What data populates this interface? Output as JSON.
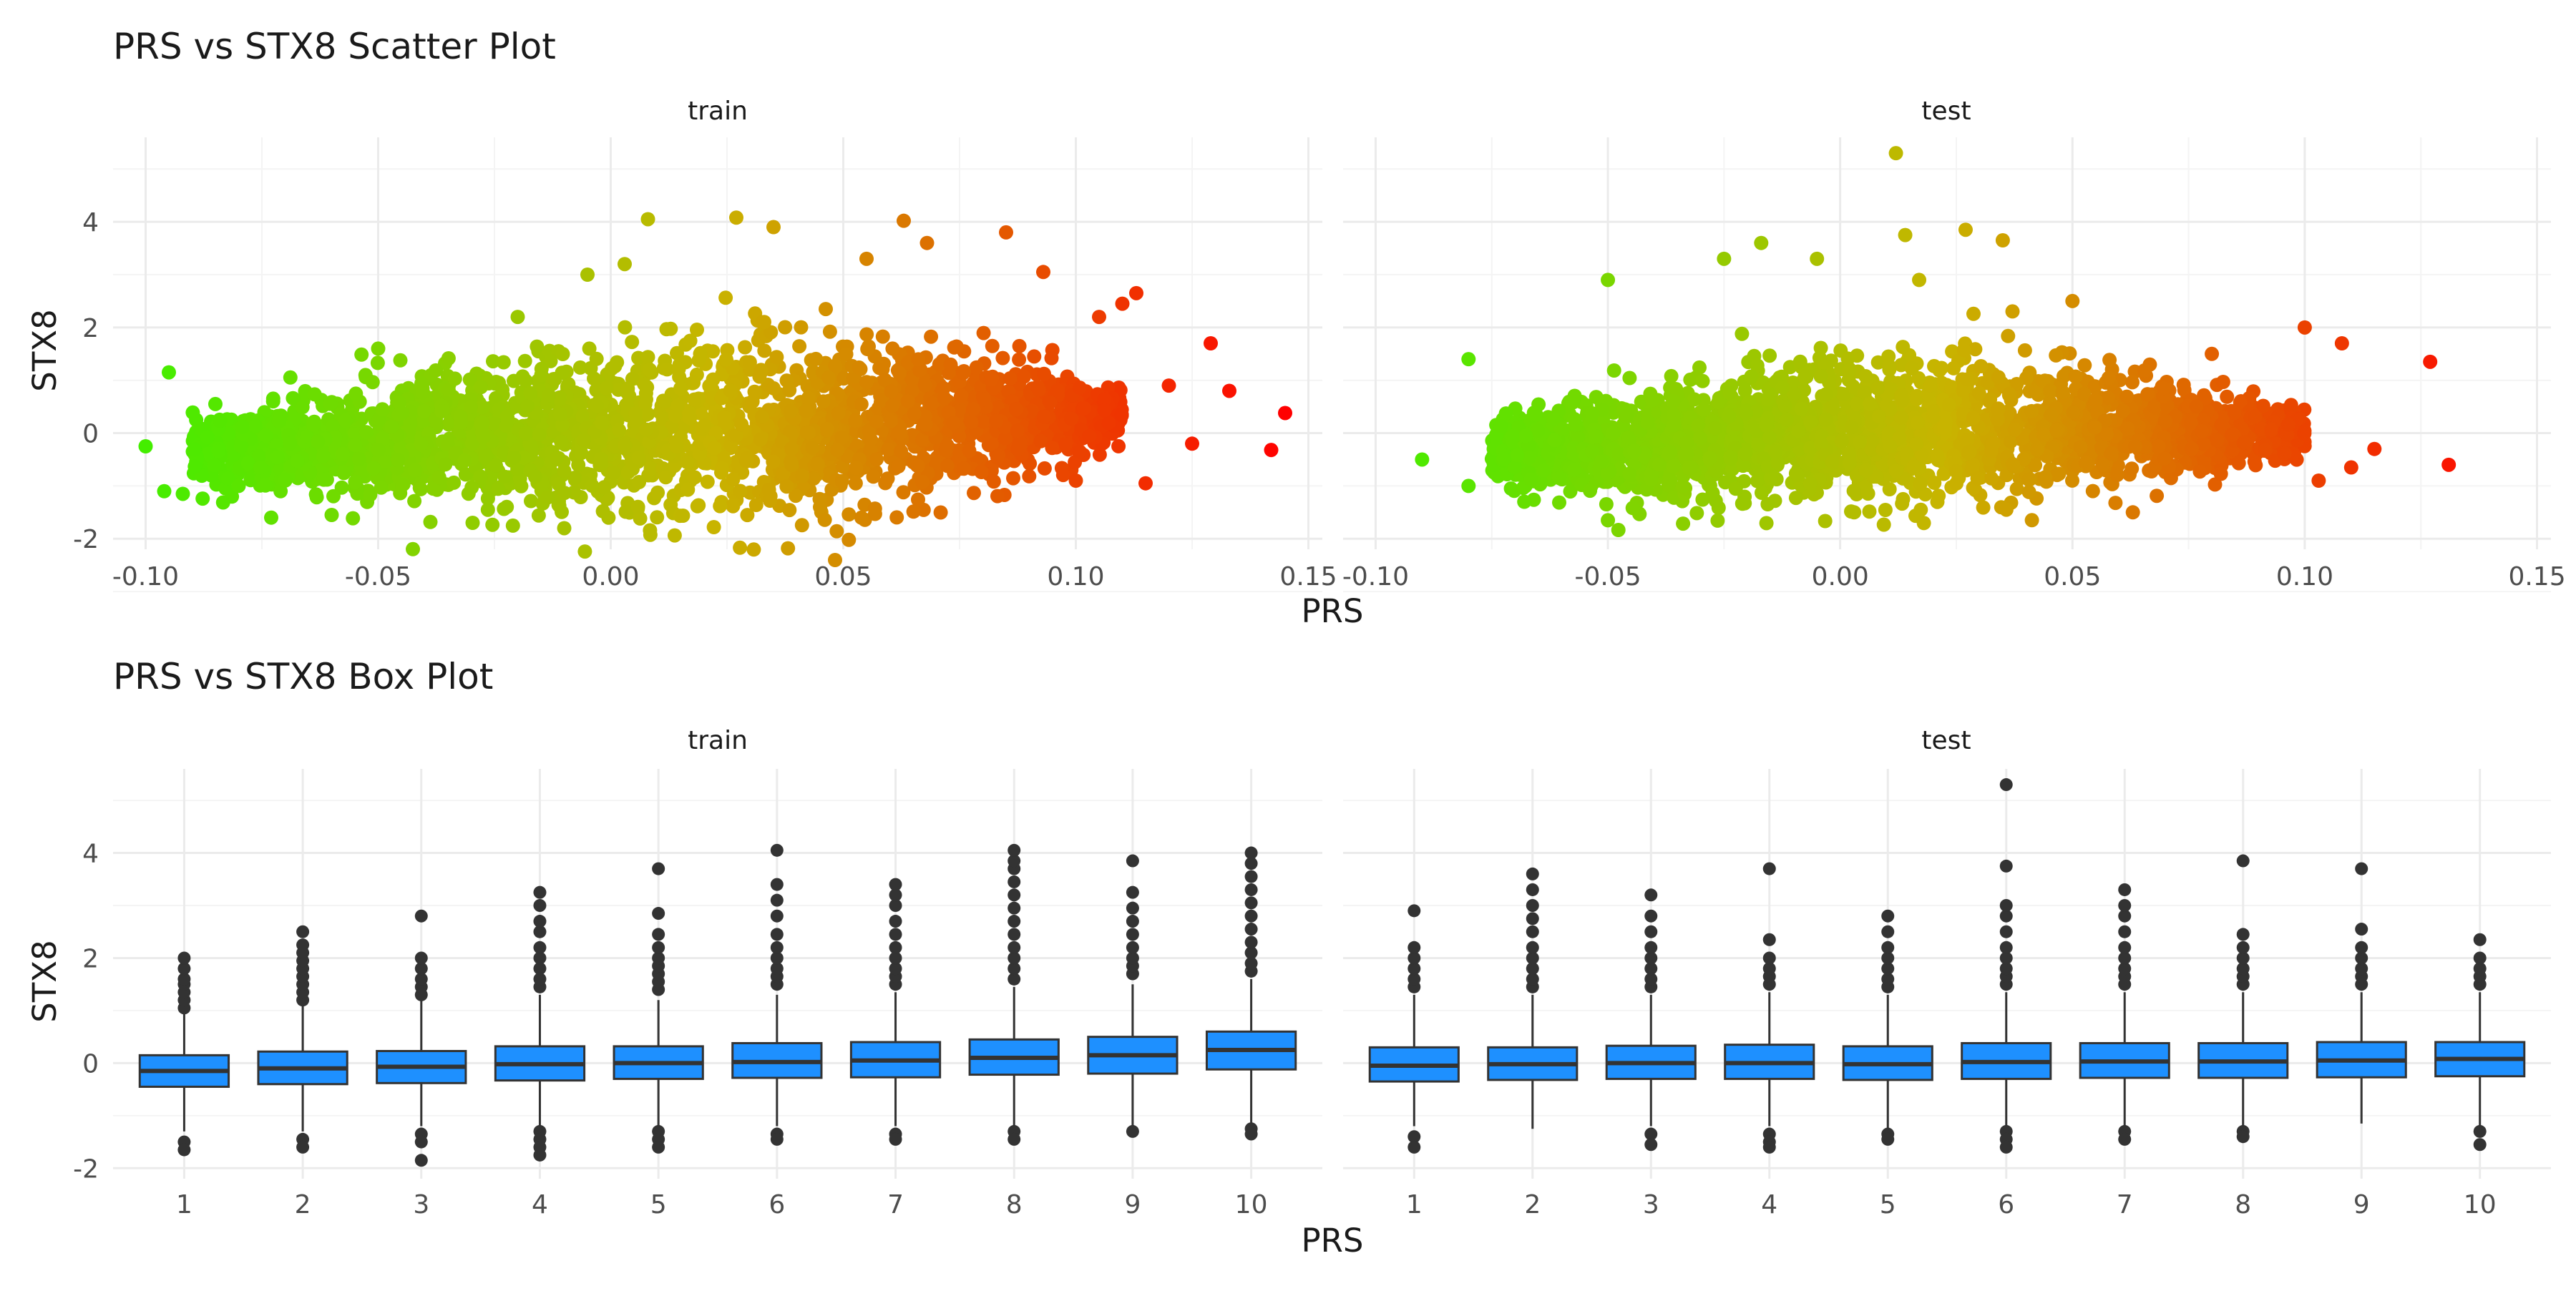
{
  "chart_data": [
    {
      "type": "scatter",
      "title": "PRS vs STX8 Scatter Plot",
      "xlabel": "PRS",
      "ylabel": "STX8",
      "xlim": [
        -0.107,
        0.153
      ],
      "ylim": [
        -2.2,
        5.6
      ],
      "x_ticks": [
        -0.1,
        -0.05,
        0.0,
        0.05,
        0.1,
        0.15
      ],
      "x_tick_labels": [
        "-0.10",
        "-0.05",
        "0.00",
        "0.05",
        "0.10",
        "0.15"
      ],
      "y_ticks": [
        -2,
        0,
        2,
        4
      ],
      "y_tick_labels": [
        "-2",
        "0",
        "2",
        "4"
      ],
      "grid": true,
      "color_gradient": {
        "low": "#44ee00",
        "mid": "#c8b400",
        "high": "#ff0000",
        "domain": [
          -0.1,
          0.145
        ]
      },
      "panels": [
        {
          "label": "train",
          "cloud": [
            {
              "x": -0.09,
              "y_center": -0.3,
              "spread": 0.6
            },
            {
              "x": -0.06,
              "y_center": -0.25,
              "spread": 1.2
            },
            {
              "x": -0.03,
              "y_center": -0.1,
              "spread": 1.6
            },
            {
              "x": 0.0,
              "y_center": 0.0,
              "spread": 1.8
            },
            {
              "x": 0.03,
              "y_center": 0.1,
              "spread": 1.9
            },
            {
              "x": 0.06,
              "y_center": 0.2,
              "spread": 1.8
            },
            {
              "x": 0.09,
              "y_center": 0.3,
              "spread": 1.2
            },
            {
              "x": 0.11,
              "y_center": 0.3,
              "spread": 0.6
            }
          ],
          "points": [
            {
              "x": -0.1,
              "y": -0.25
            },
            {
              "x": -0.095,
              "y": 1.15
            },
            {
              "x": -0.096,
              "y": -1.1
            },
            {
              "x": -0.092,
              "y": -1.15
            },
            {
              "x": -0.085,
              "y": 0.55
            },
            {
              "x": -0.08,
              "y": -1.0
            },
            {
              "x": -0.073,
              "y": -1.6
            },
            {
              "x": -0.06,
              "y": -1.55
            },
            {
              "x": -0.05,
              "y": 1.6
            },
            {
              "x": -0.02,
              "y": 2.2
            },
            {
              "x": -0.005,
              "y": 3.0
            },
            {
              "x": -0.01,
              "y": -1.8
            },
            {
              "x": 0.003,
              "y": 3.2
            },
            {
              "x": 0.008,
              "y": 4.05
            },
            {
              "x": 0.027,
              "y": 4.08
            },
            {
              "x": 0.035,
              "y": 3.9
            },
            {
              "x": 0.055,
              "y": 3.3
            },
            {
              "x": 0.063,
              "y": 4.02
            },
            {
              "x": 0.068,
              "y": 3.6
            },
            {
              "x": 0.085,
              "y": 3.8
            },
            {
              "x": 0.093,
              "y": 3.05
            },
            {
              "x": 0.105,
              "y": 2.2
            },
            {
              "x": 0.11,
              "y": 2.45
            },
            {
              "x": 0.113,
              "y": 2.65
            },
            {
              "x": 0.12,
              "y": 0.9
            },
            {
              "x": 0.125,
              "y": -0.2
            },
            {
              "x": 0.129,
              "y": 1.7
            },
            {
              "x": 0.133,
              "y": 0.8
            },
            {
              "x": 0.145,
              "y": 0.38
            },
            {
              "x": 0.142,
              "y": -0.32
            },
            {
              "x": 0.115,
              "y": -0.95
            },
            {
              "x": 0.1,
              "y": -0.9
            },
            {
              "x": 0.045,
              "y": -1.4
            }
          ]
        },
        {
          "label": "test",
          "cloud": [
            {
              "x": -0.075,
              "y_center": -0.35,
              "spread": 0.7
            },
            {
              "x": -0.05,
              "y_center": -0.25,
              "spread": 1.2
            },
            {
              "x": -0.025,
              "y_center": -0.1,
              "spread": 1.4
            },
            {
              "x": 0.0,
              "y_center": 0.0,
              "spread": 1.5
            },
            {
              "x": 0.025,
              "y_center": 0.05,
              "spread": 1.5
            },
            {
              "x": 0.05,
              "y_center": 0.1,
              "spread": 1.3
            },
            {
              "x": 0.075,
              "y_center": 0.1,
              "spread": 0.9
            },
            {
              "x": 0.1,
              "y_center": 0.0,
              "spread": 0.5
            }
          ],
          "points": [
            {
              "x": -0.09,
              "y": -0.5
            },
            {
              "x": -0.08,
              "y": 1.4
            },
            {
              "x": -0.08,
              "y": -1.0
            },
            {
              "x": -0.068,
              "y": -1.3
            },
            {
              "x": -0.05,
              "y": 2.9
            },
            {
              "x": -0.05,
              "y": -1.65
            },
            {
              "x": -0.025,
              "y": 3.3
            },
            {
              "x": -0.017,
              "y": 3.6
            },
            {
              "x": -0.005,
              "y": 3.3
            },
            {
              "x": 0.003,
              "y": -1.5
            },
            {
              "x": 0.012,
              "y": 5.3
            },
            {
              "x": 0.014,
              "y": 3.75
            },
            {
              "x": 0.017,
              "y": 2.9
            },
            {
              "x": 0.027,
              "y": 3.85
            },
            {
              "x": 0.035,
              "y": 3.65
            },
            {
              "x": 0.05,
              "y": 2.5
            },
            {
              "x": 0.063,
              "y": -1.5
            },
            {
              "x": 0.08,
              "y": 1.5
            },
            {
              "x": 0.1,
              "y": 2.0
            },
            {
              "x": 0.103,
              "y": -0.9
            },
            {
              "x": 0.108,
              "y": 1.7
            },
            {
              "x": 0.11,
              "y": -0.65
            },
            {
              "x": 0.115,
              "y": -0.3
            },
            {
              "x": 0.127,
              "y": 1.35
            },
            {
              "x": 0.131,
              "y": -0.6
            }
          ]
        }
      ]
    },
    {
      "type": "box",
      "title": "PRS vs STX8 Box Plot",
      "xlabel": "PRS",
      "ylabel": "STX8",
      "categories": [
        "1",
        "2",
        "3",
        "4",
        "5",
        "6",
        "7",
        "8",
        "9",
        "10"
      ],
      "ylim": [
        -2.2,
        5.6
      ],
      "y_ticks": [
        -2,
        0,
        2,
        4
      ],
      "y_tick_labels": [
        "-2",
        "0",
        "2",
        "4"
      ],
      "grid": true,
      "box_fill": "#1e90ff",
      "box_stroke": "#333333",
      "panels": [
        {
          "label": "train",
          "boxes": [
            {
              "q1": -0.45,
              "median": -0.15,
              "q3": 0.15,
              "whisker_low": -1.3,
              "whisker_high": 1.0,
              "outliers": [
                1.05,
                1.2,
                1.35,
                1.5,
                1.6,
                1.8,
                2.0,
                -1.5,
                -1.65
              ]
            },
            {
              "q1": -0.4,
              "median": -0.1,
              "q3": 0.22,
              "whisker_low": -1.3,
              "whisker_high": 1.1,
              "outliers": [
                1.2,
                1.35,
                1.5,
                1.65,
                1.8,
                1.95,
                2.1,
                2.25,
                2.5,
                -1.45,
                -1.6
              ]
            },
            {
              "q1": -0.38,
              "median": -0.07,
              "q3": 0.23,
              "whisker_low": -1.2,
              "whisker_high": 1.2,
              "outliers": [
                1.3,
                1.45,
                1.6,
                1.8,
                2.0,
                2.8,
                -1.35,
                -1.5,
                -1.85
              ]
            },
            {
              "q1": -0.33,
              "median": -0.02,
              "q3": 0.32,
              "whisker_low": -1.2,
              "whisker_high": 1.3,
              "outliers": [
                1.45,
                1.6,
                1.8,
                2.0,
                2.2,
                2.5,
                2.7,
                3.0,
                3.25,
                -1.3,
                -1.45,
                -1.6,
                -1.75
              ]
            },
            {
              "q1": -0.3,
              "median": 0.0,
              "q3": 0.32,
              "whisker_low": -1.2,
              "whisker_high": 1.2,
              "outliers": [
                1.4,
                1.55,
                1.7,
                1.85,
                2.0,
                2.2,
                2.45,
                2.85,
                3.7,
                -1.3,
                -1.45,
                -1.6
              ]
            },
            {
              "q1": -0.28,
              "median": 0.02,
              "q3": 0.38,
              "whisker_low": -1.2,
              "whisker_high": 1.3,
              "outliers": [
                1.5,
                1.65,
                1.8,
                2.0,
                2.2,
                2.45,
                2.8,
                3.1,
                3.4,
                4.05,
                -1.35,
                -1.45
              ]
            },
            {
              "q1": -0.27,
              "median": 0.05,
              "q3": 0.4,
              "whisker_low": -1.2,
              "whisker_high": 1.35,
              "outliers": [
                1.5,
                1.65,
                1.8,
                2.0,
                2.2,
                2.45,
                2.7,
                3.0,
                3.2,
                3.4,
                -1.35,
                -1.45
              ]
            },
            {
              "q1": -0.22,
              "median": 0.1,
              "q3": 0.45,
              "whisker_low": -1.2,
              "whisker_high": 1.45,
              "outliers": [
                1.6,
                1.8,
                2.0,
                2.2,
                2.45,
                2.7,
                2.95,
                3.2,
                3.45,
                3.7,
                3.85,
                4.05,
                -1.3,
                -1.45
              ]
            },
            {
              "q1": -0.2,
              "median": 0.15,
              "q3": 0.5,
              "whisker_low": -1.2,
              "whisker_high": 1.5,
              "outliers": [
                1.7,
                1.85,
                2.0,
                2.2,
                2.45,
                2.7,
                2.95,
                3.25,
                3.85,
                -1.3
              ]
            },
            {
              "q1": -0.12,
              "median": 0.25,
              "q3": 0.6,
              "whisker_low": -1.2,
              "whisker_high": 1.6,
              "outliers": [
                1.75,
                1.9,
                2.1,
                2.3,
                2.55,
                2.8,
                3.05,
                3.3,
                3.55,
                3.8,
                4.0,
                -1.25,
                -1.35
              ]
            }
          ]
        },
        {
          "label": "test",
          "boxes": [
            {
              "q1": -0.35,
              "median": -0.05,
              "q3": 0.3,
              "whisker_low": -1.2,
              "whisker_high": 1.3,
              "outliers": [
                1.45,
                1.6,
                1.8,
                2.0,
                2.2,
                2.9,
                -1.4,
                -1.6
              ]
            },
            {
              "q1": -0.32,
              "median": -0.02,
              "q3": 0.3,
              "whisker_low": -1.25,
              "whisker_high": 1.3,
              "outliers": [
                1.45,
                1.6,
                1.8,
                2.0,
                2.2,
                2.5,
                2.75,
                3.0,
                3.3,
                3.6
              ]
            },
            {
              "q1": -0.3,
              "median": 0.0,
              "q3": 0.33,
              "whisker_low": -1.2,
              "whisker_high": 1.3,
              "outliers": [
                1.45,
                1.6,
                1.8,
                2.0,
                2.2,
                2.5,
                2.8,
                3.2,
                -1.35,
                -1.55
              ]
            },
            {
              "q1": -0.3,
              "median": 0.0,
              "q3": 0.35,
              "whisker_low": -1.2,
              "whisker_high": 1.35,
              "outliers": [
                1.5,
                1.65,
                1.8,
                2.0,
                2.35,
                3.7,
                -1.35,
                -1.5,
                -1.6
              ]
            },
            {
              "q1": -0.32,
              "median": -0.02,
              "q3": 0.32,
              "whisker_low": -1.25,
              "whisker_high": 1.3,
              "outliers": [
                1.45,
                1.6,
                1.8,
                2.0,
                2.2,
                2.5,
                2.8,
                -1.35,
                -1.45
              ]
            },
            {
              "q1": -0.3,
              "median": 0.02,
              "q3": 0.38,
              "whisker_low": -1.2,
              "whisker_high": 1.35,
              "outliers": [
                1.5,
                1.65,
                1.8,
                2.0,
                2.2,
                2.5,
                2.8,
                3.0,
                3.75,
                5.3,
                -1.3,
                -1.45,
                -1.6
              ]
            },
            {
              "q1": -0.28,
              "median": 0.03,
              "q3": 0.38,
              "whisker_low": -1.2,
              "whisker_high": 1.35,
              "outliers": [
                1.5,
                1.65,
                1.8,
                2.0,
                2.2,
                2.5,
                2.8,
                3.0,
                3.3,
                -1.3,
                -1.45
              ]
            },
            {
              "q1": -0.28,
              "median": 0.03,
              "q3": 0.38,
              "whisker_low": -1.2,
              "whisker_high": 1.35,
              "outliers": [
                1.5,
                1.65,
                1.8,
                2.0,
                2.2,
                2.45,
                3.85,
                -1.3,
                -1.4
              ]
            },
            {
              "q1": -0.27,
              "median": 0.05,
              "q3": 0.4,
              "whisker_low": -1.15,
              "whisker_high": 1.35,
              "outliers": [
                1.5,
                1.65,
                1.8,
                2.0,
                2.2,
                2.55,
                3.7
              ]
            },
            {
              "q1": -0.25,
              "median": 0.08,
              "q3": 0.4,
              "whisker_low": -1.2,
              "whisker_high": 1.35,
              "outliers": [
                1.5,
                1.65,
                1.8,
                2.0,
                2.35,
                -1.3,
                -1.55
              ]
            }
          ]
        }
      ]
    }
  ]
}
